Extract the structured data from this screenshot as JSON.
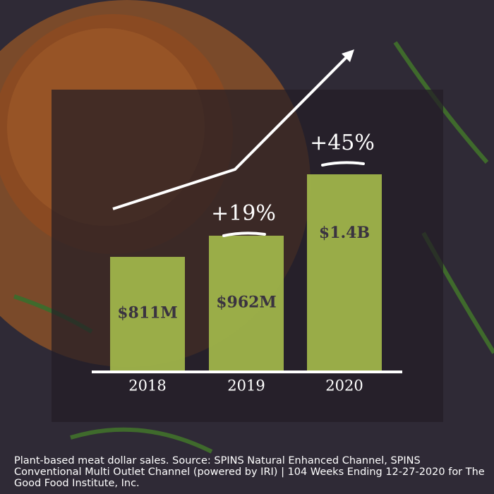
{
  "chart_data": {
    "type": "bar",
    "categories": [
      "2018",
      "2019",
      "2020"
    ],
    "values": [
      811000000,
      962000000,
      1400000000
    ],
    "value_labels": [
      "$811M",
      "$962M",
      "$1.4B"
    ],
    "color": "#a3b84b",
    "annotations": [
      "+19%",
      "+45%"
    ],
    "caption": "Plant-based meat dollar sales. Source: SPINS Natural Enhanced Channel, SPINS Conventional Multi Outlet Channel (powered by IRI) | 104 Weeks Ending 12-27-2020 for The Good Food Institute, Inc."
  }
}
